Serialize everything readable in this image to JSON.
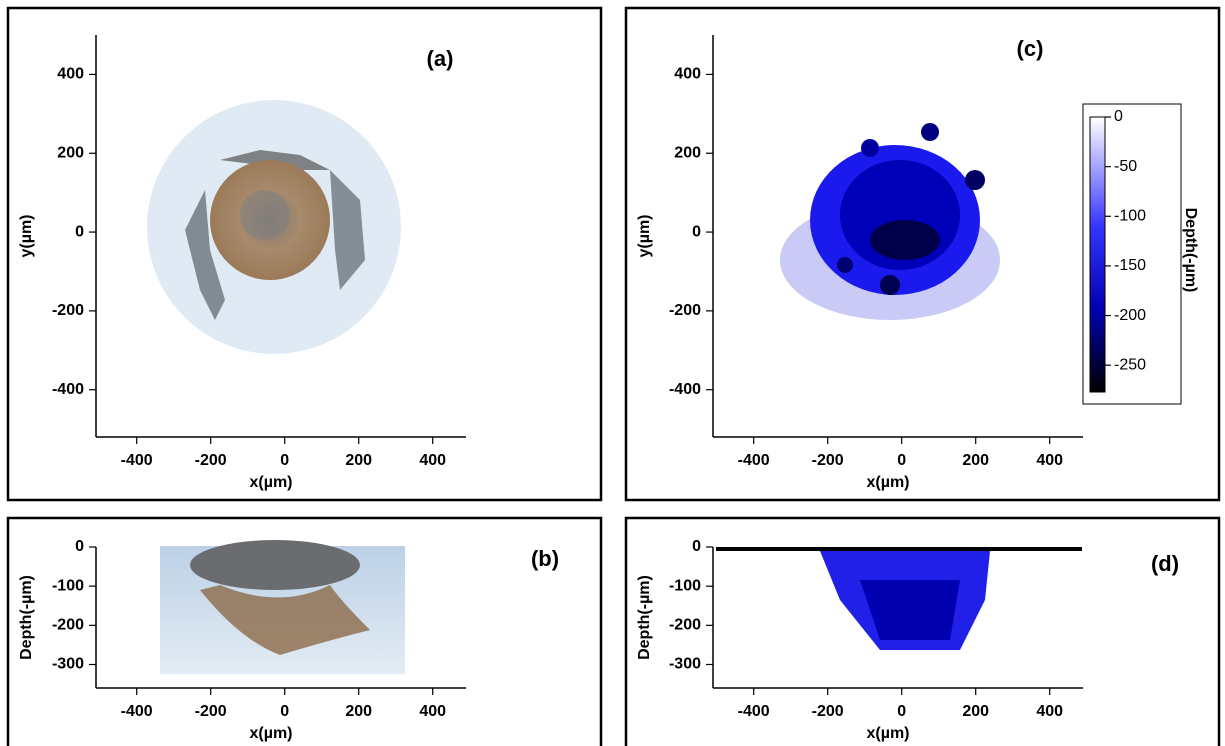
{
  "chart_data": [
    {
      "type": "image",
      "panel_label": "(a)",
      "x_label": "x(µm)",
      "y_label": "y(µm)",
      "xlim": [
        -510,
        490
      ],
      "ylim": [
        -520,
        500
      ],
      "xticks": [
        -400,
        -200,
        0,
        200,
        400
      ],
      "yticks": [
        -400,
        -200,
        0,
        200,
        400
      ]
    },
    {
      "type": "image",
      "panel_label": "(b)",
      "x_label": "x(µm)",
      "y_label": "Depth(-µm)",
      "xlim": [
        -510,
        490
      ],
      "ylim": [
        -360,
        0
      ],
      "xticks": [
        -400,
        -200,
        0,
        200,
        400
      ],
      "yticks": [
        -300,
        -200,
        -100,
        0
      ]
    },
    {
      "type": "image",
      "panel_label": "(c)",
      "x_label": "x(µm)",
      "y_label": "y(µm)",
      "xlim": [
        -510,
        490
      ],
      "ylim": [
        -520,
        500
      ],
      "xticks": [
        -400,
        -200,
        0,
        200,
        400
      ],
      "yticks": [
        -400,
        -200,
        0,
        200,
        400
      ],
      "colorbar": {
        "label": "Depth(-µm)",
        "lim": [
          0,
          -277
        ],
        "ticks": [
          0,
          -50,
          -100,
          -150,
          -200,
          -250
        ]
      }
    },
    {
      "type": "image",
      "panel_label": "(d)",
      "x_label": "x(µm)",
      "y_label": "Depth(-µm)",
      "xlim": [
        -510,
        490
      ],
      "ylim": [
        -360,
        0
      ],
      "xticks": [
        -400,
        -200,
        0,
        200,
        400
      ],
      "yticks": [
        -300,
        -200,
        -100,
        0
      ]
    }
  ]
}
